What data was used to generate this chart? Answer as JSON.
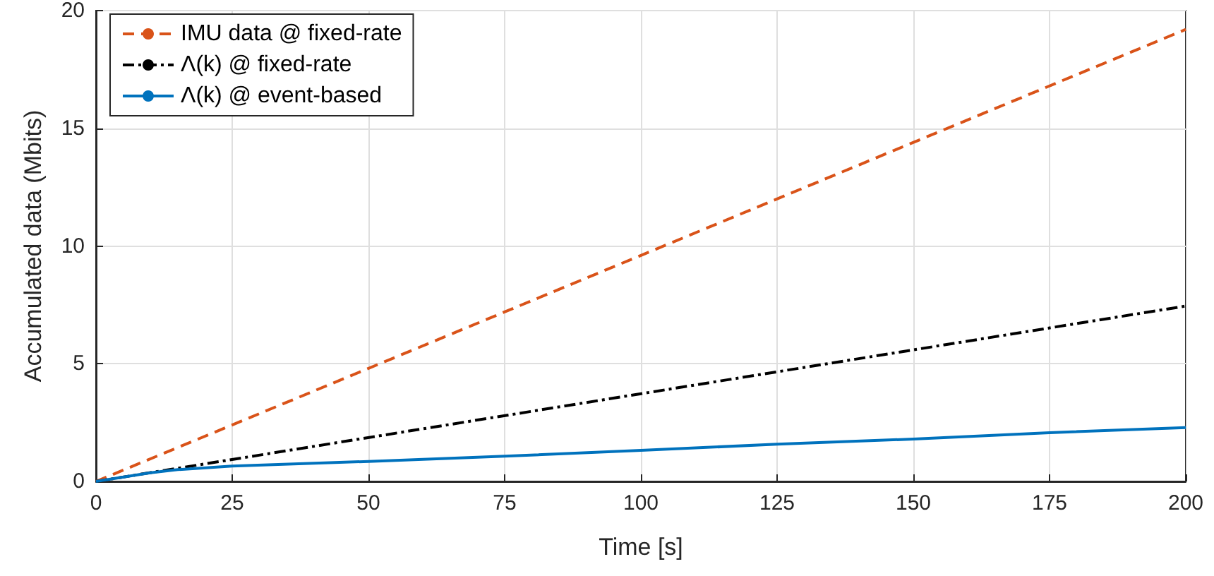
{
  "chart_data": {
    "type": "line",
    "xlabel": "Time [s]",
    "ylabel": "Accumulated data (Mbits)",
    "xlim": [
      0,
      200
    ],
    "ylim": [
      0,
      20
    ],
    "xticks": [
      0,
      25,
      50,
      75,
      100,
      125,
      150,
      175,
      200
    ],
    "yticks": [
      0,
      5,
      10,
      15,
      20
    ],
    "grid": true,
    "legend": "top left",
    "marker": "none",
    "series": [
      {
        "name": "IMU data @ fixed-rate",
        "color": "#d95319",
        "line_style": "dashed",
        "x": [
          0,
          200
        ],
        "values": [
          0,
          19.2
        ]
      },
      {
        "name": "Λ(k) @ fixed-rate",
        "color": "#000000",
        "line_style": "dashdot",
        "x": [
          0,
          200
        ],
        "values": [
          0,
          7.45
        ]
      },
      {
        "name": "Λ(k) @ event-based",
        "color": "#0072bd",
        "line_style": "solid",
        "x": [
          0,
          10,
          15,
          25,
          50,
          75,
          100,
          125,
          150,
          175,
          200
        ],
        "values": [
          0,
          0.37,
          0.5,
          0.65,
          0.85,
          1.07,
          1.32,
          1.58,
          1.8,
          2.07,
          2.29
        ]
      }
    ]
  }
}
